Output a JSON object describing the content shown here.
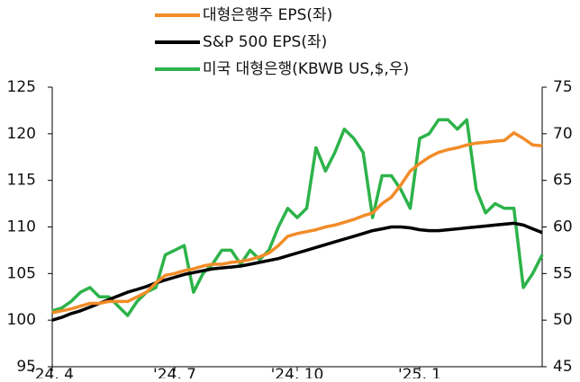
{
  "chart_data": {
    "type": "line",
    "categories": [
      "'24, 4",
      null,
      null,
      null,
      null,
      null,
      null,
      null,
      null,
      null,
      null,
      null,
      null,
      "'24, 7",
      null,
      null,
      null,
      null,
      null,
      null,
      null,
      null,
      null,
      null,
      null,
      null,
      "'24, 10",
      null,
      null,
      null,
      null,
      null,
      null,
      null,
      null,
      null,
      null,
      null,
      null,
      "'25, 1",
      null,
      null,
      null,
      null,
      null,
      null,
      null,
      null,
      null,
      null,
      null,
      null,
      null
    ],
    "ylim": [
      95,
      125
    ],
    "yticks": [
      95,
      100,
      105,
      110,
      115,
      120,
      125
    ],
    "y2lim": [
      45,
      75
    ],
    "y2ticks": [
      45,
      50,
      55,
      60,
      65,
      70,
      75
    ],
    "legend": "top",
    "series": [
      {
        "name": "대형은행주 EPS(좌)",
        "color": "#f28c28",
        "values": [
          100.8,
          101,
          101.2,
          101.5,
          101.8,
          101.8,
          102,
          102,
          102,
          102.5,
          103,
          104,
          104.8,
          105,
          105.3,
          105.5,
          105.8,
          106,
          106,
          106.2,
          106.3,
          106.5,
          106.8,
          107.2,
          108,
          109,
          109.3,
          109.5,
          109.7,
          110,
          110.2,
          110.5,
          110.8,
          111.2,
          111.5,
          112.5,
          113.2,
          114.5,
          116,
          116.8,
          117.5,
          118,
          118.3,
          118.5,
          118.8,
          119,
          119.1,
          119.2,
          119.3,
          120.1,
          119.5,
          118.8,
          118.7
        ]
      },
      {
        "name": "S&P 500 EPS(좌)",
        "color": "#000000",
        "values": [
          100,
          100.3,
          100.7,
          101,
          101.4,
          101.8,
          102.2,
          102.6,
          103,
          103.3,
          103.6,
          104,
          104.3,
          104.6,
          104.9,
          105.1,
          105.3,
          105.5,
          105.6,
          105.7,
          105.8,
          106,
          106.2,
          106.4,
          106.6,
          106.9,
          107.2,
          107.5,
          107.8,
          108.1,
          108.4,
          108.7,
          109,
          109.3,
          109.6,
          109.8,
          110,
          110,
          109.9,
          109.7,
          109.6,
          109.6,
          109.7,
          109.8,
          109.9,
          110,
          110.1,
          110.2,
          110.3,
          110.4,
          110.2,
          109.8,
          109.4
        ]
      },
      {
        "name": "미국 대형은행(KBWB US,$,우)",
        "color": "#2db34a",
        "axis": "y2",
        "values": [
          51,
          51.3,
          52,
          53,
          53.5,
          52.5,
          52.5,
          51.5,
          50.5,
          52,
          53,
          53.5,
          57,
          57.5,
          58,
          53,
          55,
          56,
          57.5,
          57.5,
          56,
          57.5,
          56.5,
          57.5,
          60,
          62,
          61,
          62,
          68.5,
          66,
          68,
          70.5,
          69.5,
          68,
          61,
          65.5,
          65.5,
          64,
          62,
          69.5,
          70,
          71.5,
          71.5,
          70.5,
          71.5,
          64,
          61.5,
          62.5,
          62,
          62,
          53.5,
          55,
          57
        ]
      }
    ]
  }
}
